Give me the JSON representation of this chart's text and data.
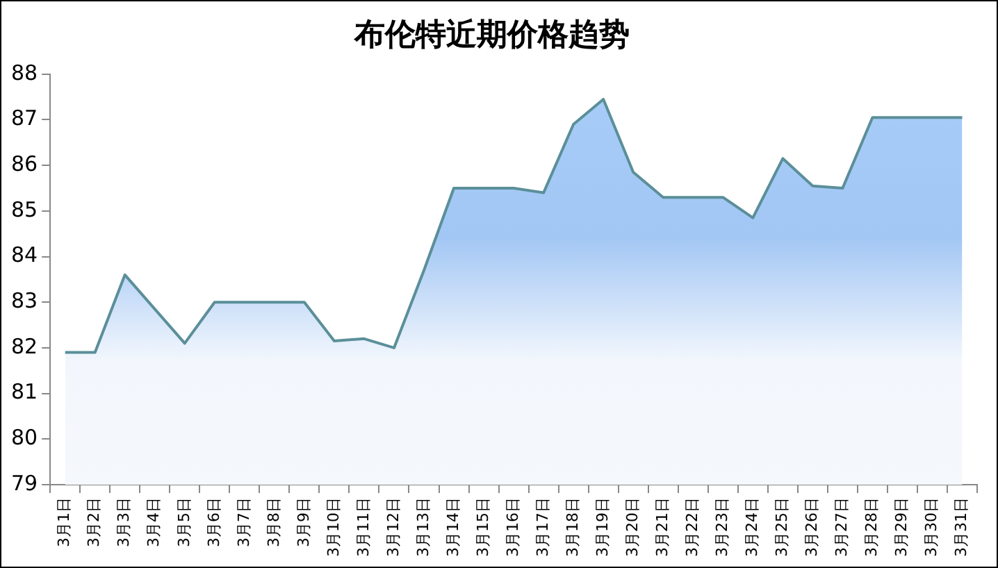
{
  "chart_data": {
    "type": "area",
    "title": "布伦特近期价格趋势",
    "categories": [
      "3月1日",
      "3月2日",
      "3月3日",
      "3月4日",
      "3月5日",
      "3月6日",
      "3月7日",
      "3月8日",
      "3月9日",
      "3月10日",
      "3月11日",
      "3月12日",
      "3月13日",
      "3月14日",
      "3月15日",
      "3月16日",
      "3月17日",
      "3月18日",
      "3月19日",
      "3月20日",
      "3月21日",
      "3月22日",
      "3月23日",
      "3月24日",
      "3月25日",
      "3月26日",
      "3月27日",
      "3月28日",
      "3月29日",
      "3月30日",
      "3月31日"
    ],
    "series": [
      {
        "color": "#5b8f99",
        "values": [
          81.9,
          81.9,
          83.6,
          82.85,
          82.1,
          83.0,
          83.0,
          83.0,
          83.0,
          82.15,
          82.2,
          82.0,
          83.7,
          85.5,
          85.5,
          85.5,
          85.4,
          86.9,
          87.45,
          85.85,
          85.3,
          85.3,
          85.3,
          84.85,
          86.15,
          85.55,
          85.5,
          87.05,
          87.05,
          87.05,
          87.05
        ]
      }
    ],
    "ylim": [
      79,
      88
    ],
    "yticks": [
      79,
      80,
      81,
      82,
      83,
      84,
      85,
      86,
      87,
      88
    ],
    "grid": false,
    "legend": false,
    "marker": "none"
  }
}
